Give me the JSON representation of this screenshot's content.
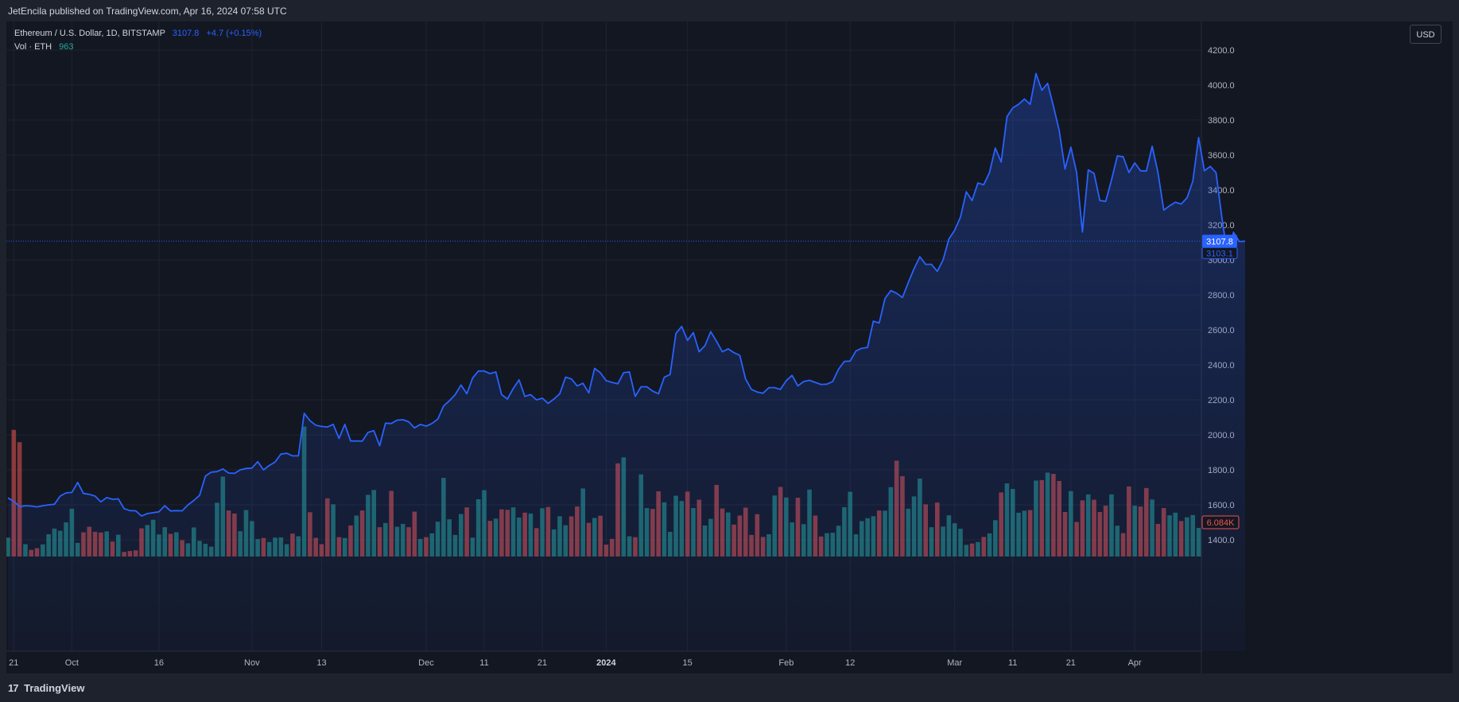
{
  "header": {
    "published_text": "JetEncila published on TradingView.com, Apr 16, 2024 07:58 UTC"
  },
  "legend": {
    "symbol_line": "Ethereum / U.S. Dollar, 1D, BITSTAMP",
    "last_price": "3107.8",
    "change": "+4.7 (+0.15%)",
    "volume_label": "Vol · ETH",
    "volume_value": "963"
  },
  "currency_button": "USD",
  "footer": {
    "logo_mark": "17",
    "logo_text": "TradingView"
  },
  "colors": {
    "line": "#2962ff",
    "vol_up": "#26a69a",
    "vol_down": "#ef5350",
    "background": "#131722"
  },
  "chart_data": {
    "type": "area",
    "title": "Ethereum / U.S. Dollar, 1D, BITSTAMP",
    "xlabel": "",
    "ylabel": "",
    "ylim": [
      1280,
      4360
    ],
    "y_ticks": [
      "1400.0",
      "1600.0",
      "1800.0",
      "2000.0",
      "2200.0",
      "2400.0",
      "2600.0",
      "2800.0",
      "3000.0",
      "3200.0",
      "3400.0",
      "3600.0",
      "3800.0",
      "4000.0",
      "4200.0"
    ],
    "x_ticks": [
      {
        "label": "21",
        "date": "2023-09-21",
        "bold": false
      },
      {
        "label": "Oct",
        "date": "2023-10-01",
        "bold": false
      },
      {
        "label": "16",
        "date": "2023-10-16",
        "bold": false
      },
      {
        "label": "Nov",
        "date": "2023-11-01",
        "bold": false
      },
      {
        "label": "13",
        "date": "2023-11-13",
        "bold": false
      },
      {
        "label": "Dec",
        "date": "2023-12-01",
        "bold": false
      },
      {
        "label": "11",
        "date": "2023-12-11",
        "bold": false
      },
      {
        "label": "21",
        "date": "2023-12-21",
        "bold": false
      },
      {
        "label": "2024",
        "date": "2024-01-01",
        "bold": true
      },
      {
        "label": "15",
        "date": "2024-01-15",
        "bold": false
      },
      {
        "label": "Feb",
        "date": "2024-02-01",
        "bold": false
      },
      {
        "label": "12",
        "date": "2024-02-12",
        "bold": false
      },
      {
        "label": "Mar",
        "date": "2024-03-01",
        "bold": false
      },
      {
        "label": "11",
        "date": "2024-03-11",
        "bold": false
      },
      {
        "label": "21",
        "date": "2024-03-21",
        "bold": false
      },
      {
        "label": "Apr",
        "date": "2024-04-01",
        "bold": false
      },
      {
        "label": "15",
        "date": "2024-04-15",
        "bold": false
      }
    ],
    "x_range": [
      "2023-09-20",
      "2024-04-16"
    ],
    "series": [
      {
        "name": "ETH/USD close",
        "type": "line",
        "x_start": "2023-09-20",
        "values": [
          1640,
          1620,
          1590,
          1595,
          1593,
          1588,
          1595,
          1600,
          1603,
          1650,
          1668,
          1671,
          1728,
          1665,
          1660,
          1650,
          1617,
          1642,
          1632,
          1634,
          1578,
          1567,
          1566,
          1536,
          1550,
          1555,
          1560,
          1595,
          1565,
          1567,
          1566,
          1600,
          1625,
          1655,
          1765,
          1787,
          1790,
          1805,
          1782,
          1780,
          1800,
          1808,
          1810,
          1847,
          1800,
          1825,
          1845,
          1890,
          1895,
          1880,
          1880,
          2123,
          2081,
          2055,
          2048,
          2045,
          2060,
          1980,
          2060,
          1965,
          1965,
          1964,
          2014,
          2024,
          1938,
          2067,
          2065,
          2084,
          2087,
          2075,
          2040,
          2060,
          2050,
          2065,
          2090,
          2165,
          2195,
          2230,
          2285,
          2235,
          2325,
          2365,
          2365,
          2350,
          2360,
          2230,
          2205,
          2265,
          2315,
          2220,
          2230,
          2200,
          2210,
          2180,
          2205,
          2235,
          2330,
          2320,
          2280,
          2295,
          2240,
          2380,
          2355,
          2310,
          2300,
          2292,
          2355,
          2360,
          2220,
          2275,
          2275,
          2250,
          2235,
          2330,
          2345,
          2580,
          2620,
          2540,
          2585,
          2475,
          2510,
          2590,
          2535,
          2475,
          2492,
          2470,
          2455,
          2320,
          2260,
          2245,
          2238,
          2270,
          2270,
          2260,
          2310,
          2340,
          2280,
          2305,
          2312,
          2300,
          2288,
          2290,
          2305,
          2375,
          2420,
          2422,
          2480,
          2495,
          2500,
          2650,
          2640,
          2780,
          2825,
          2810,
          2785,
          2870,
          2950,
          3018,
          2975,
          2975,
          2935,
          3000,
          3120,
          3170,
          3245,
          3390,
          3340,
          3440,
          3430,
          3500,
          3640,
          3560,
          3820,
          3870,
          3890,
          3920,
          3890,
          4066,
          3970,
          4010,
          3880,
          3740,
          3520,
          3645,
          3500,
          3160,
          3515,
          3495,
          3340,
          3335,
          3458,
          3595,
          3590,
          3500,
          3555,
          3510,
          3508,
          3650,
          3500,
          3285,
          3310,
          3330,
          3320,
          3355,
          3450,
          3700,
          3510,
          3535,
          3500,
          3245,
          3020,
          3158,
          3105,
          3107.8
        ]
      },
      {
        "name": "Volume",
        "type": "bar",
        "x_start": "2023-09-20",
        "values_k": [
          86,
          575,
          519,
          56,
          30,
          38,
          55,
          101,
          127,
          117,
          155,
          217,
          62,
          110,
          135,
          112,
          109,
          114,
          68,
          99,
          21,
          25,
          28,
          128,
          143,
          167,
          100,
          133,
          103,
          110,
          74,
          60,
          132,
          71,
          58,
          45,
          244,
          363,
          209,
          195,
          115,
          211,
          161,
          79,
          84,
          66,
          86,
          87,
          56,
          104,
          92,
          590,
          201,
          85,
          56,
          264,
          237,
          88,
          84,
          141,
          186,
          209,
          280,
          302,
          133,
          152,
          298,
          135,
          148,
          133,
          204,
          80,
          88,
          105,
          158,
          357,
          169,
          98,
          193,
          223,
          86,
          260,
          301,
          162,
          172,
          214,
          212,
          223,
          177,
          199,
          195,
          129,
          219,
          225,
          123,
          183,
          142,
          182,
          227,
          309,
          153,
          175,
          185,
          54,
          80,
          423,
          450,
          92,
          88,
          373,
          220,
          216,
          296,
          246,
          112,
          276,
          252,
          295,
          220,
          258,
          141,
          171,
          325,
          218,
          200,
          145,
          186,
          222,
          98,
          192,
          89,
          101,
          277,
          316,
          268,
          155,
          267,
          147,
          304,
          186,
          91,
          106,
          108,
          140,
          224,
          294,
          101,
          161,
          174,
          183,
          209,
          208,
          315,
          435,
          365,
          217,
          273,
          354,
          237,
          133,
          245,
          136,
          187,
          151,
          126,
          53,
          59,
          66,
          89,
          105,
          165,
          291,
          332,
          307,
          199,
          208,
          211,
          345,
          347,
          381,
          375,
          343,
          202,
          297,
          157,
          255,
          282,
          258,
          202,
          231,
          282,
          140,
          106,
          318,
          231,
          227,
          311,
          259,
          148,
          220,
          187,
          199,
          161,
          178,
          188,
          130,
          117,
          110,
          206,
          194,
          197,
          78,
          130,
          146,
          208,
          220,
          247,
          243,
          150,
          101,
          308,
          292,
          292,
          239
        ]
      }
    ],
    "last_price_tag": "3107.8",
    "secondary_price_tag": "3103.1",
    "volume_tag": "6.084K",
    "grid": true,
    "legend_position": "top-left"
  }
}
